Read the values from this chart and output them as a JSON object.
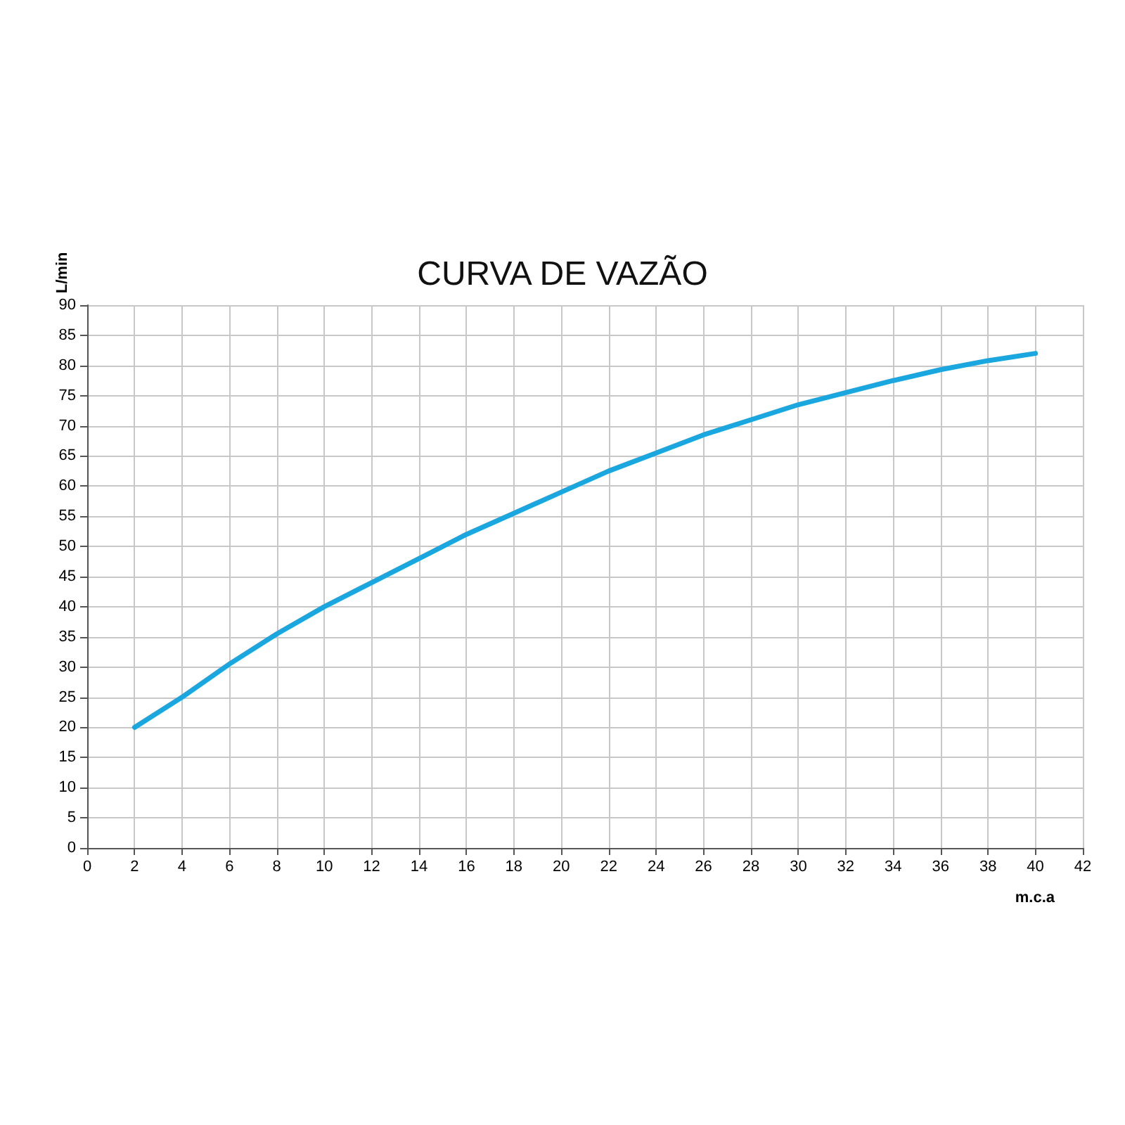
{
  "chart_data": {
    "type": "line",
    "title": "CURVA DE VAZÃO",
    "xlabel": "m.c.a",
    "ylabel": "L/min",
    "xlim": [
      0,
      42
    ],
    "xticks": [
      0,
      2,
      4,
      6,
      8,
      10,
      12,
      14,
      16,
      18,
      20,
      22,
      24,
      26,
      28,
      30,
      32,
      34,
      36,
      38,
      40,
      42
    ],
    "ylim": [
      0,
      90
    ],
    "yticks": [
      0,
      5,
      10,
      15,
      20,
      25,
      30,
      35,
      40,
      45,
      50,
      55,
      60,
      65,
      70,
      75,
      80,
      85,
      90
    ],
    "grid": true,
    "marker": "none",
    "line_style": "solid",
    "series": [
      {
        "color": "#1aa7e0",
        "x": [
          2,
          4,
          6,
          8,
          10,
          12,
          14,
          16,
          18,
          20,
          22,
          24,
          26,
          28,
          30,
          32,
          34,
          36,
          38,
          40
        ],
        "values": [
          20,
          25,
          30.5,
          35.5,
          40,
          44,
          48,
          52,
          55.5,
          59,
          62.5,
          65.5,
          68.5,
          71,
          73.5,
          75.5,
          77.5,
          79.3,
          80.8,
          82
        ]
      }
    ]
  }
}
